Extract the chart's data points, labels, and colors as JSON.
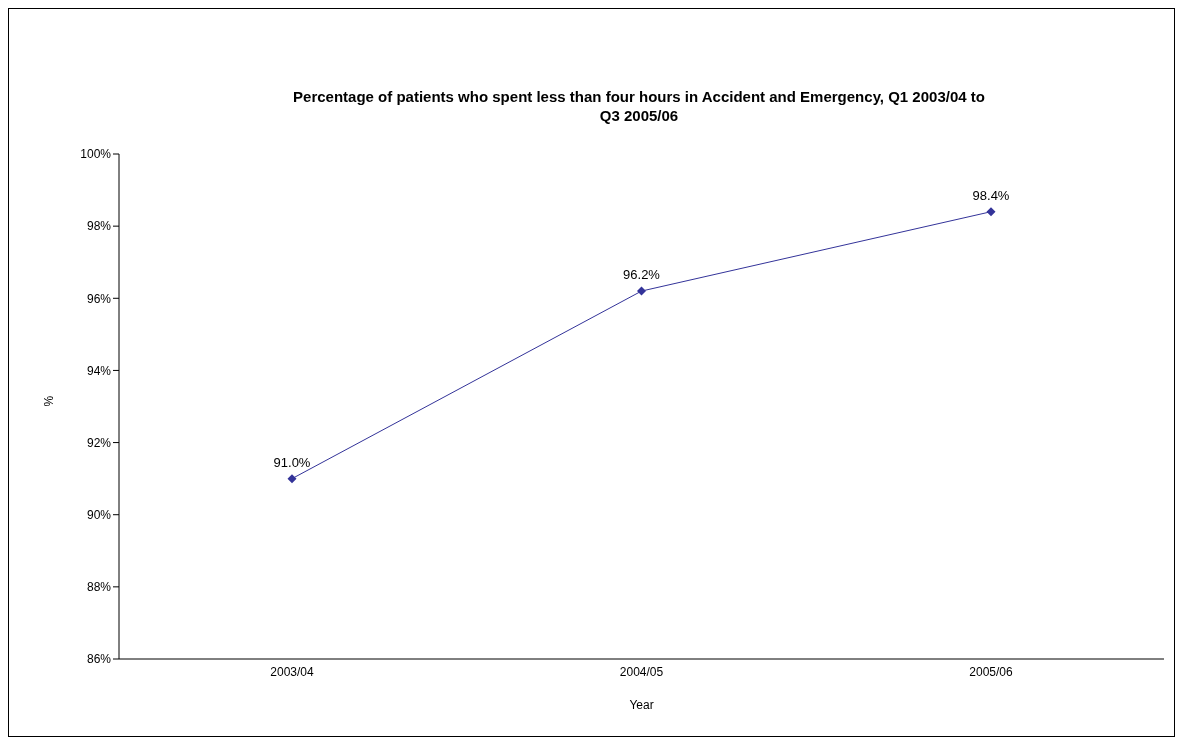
{
  "chart_data": {
    "type": "line",
    "title": "Percentage of patients who spent less than four hours in Accident and Emergency, Q1 2003/04 to Q3 2005/06",
    "xlabel": "Year",
    "ylabel": "%",
    "categories": [
      "2003/04",
      "2004/05",
      "2005/06"
    ],
    "series": [
      {
        "color": "#333399",
        "values": [
          91.0,
          96.2,
          98.4
        ],
        "value_labels": [
          "91.0%",
          "96.2%",
          "98.4%"
        ]
      }
    ],
    "ylim": [
      86,
      100
    ],
    "yticks": [
      {
        "value": 86,
        "label": "86%"
      },
      {
        "value": 88,
        "label": "88%"
      },
      {
        "value": 90,
        "label": "90%"
      },
      {
        "value": 92,
        "label": "92%"
      },
      {
        "value": 94,
        "label": "94%"
      },
      {
        "value": 96,
        "label": "96%"
      },
      {
        "value": 98,
        "label": "98%"
      },
      {
        "value": 100,
        "label": "100%"
      }
    ],
    "grid": false,
    "legend": false,
    "marker": "diamond",
    "line_style": "solid"
  }
}
